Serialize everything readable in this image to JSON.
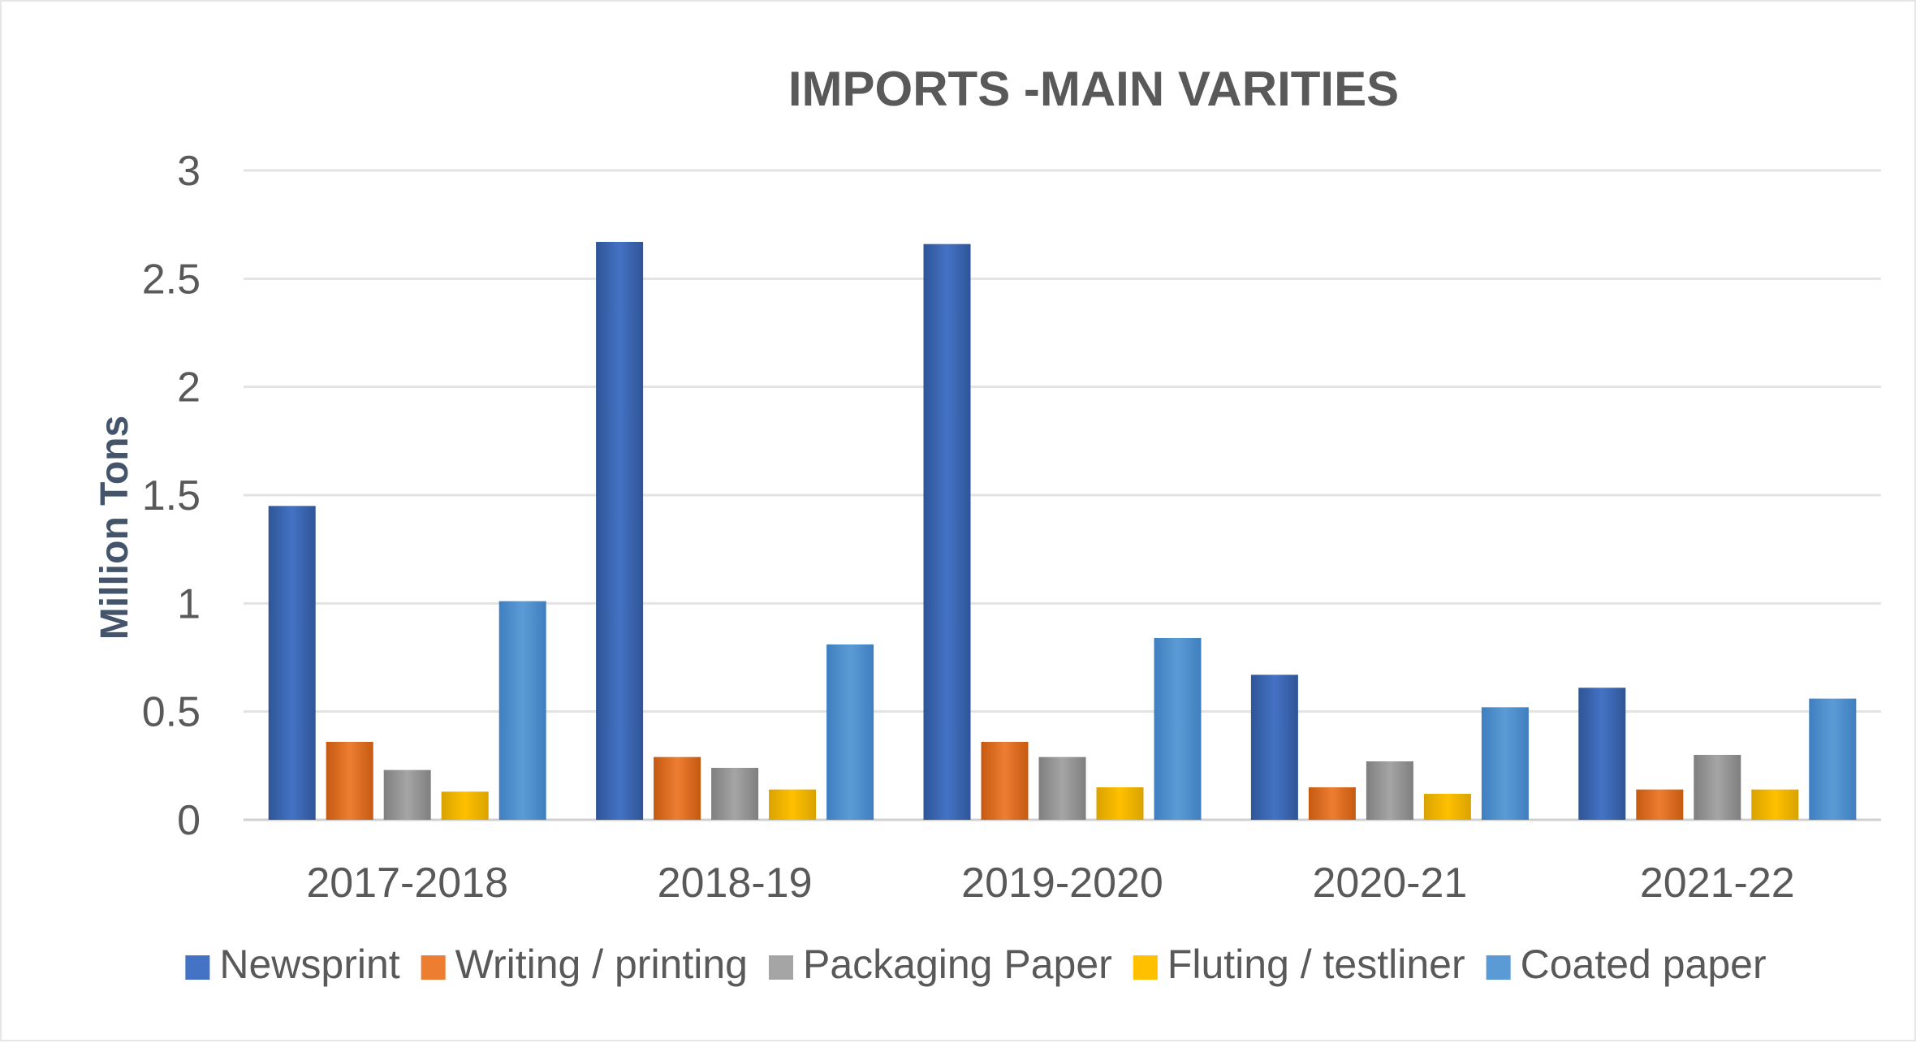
{
  "chart_data": {
    "type": "bar",
    "title": "IMPORTS -MAIN VARITIES",
    "xlabel": "",
    "ylabel": "Million Tons",
    "ylim": [
      0,
      3
    ],
    "yticks": [
      "0",
      "0.5",
      "1",
      "1.5",
      "2",
      "2.5",
      "3"
    ],
    "grid": true,
    "legend_position": "bottom",
    "categories": [
      "2017-2018",
      "2018-19",
      "2019-2020",
      "2020-21",
      "2021-22"
    ],
    "series": [
      {
        "name": "Newsprint",
        "color": "#4472c4",
        "values": [
          1.45,
          2.67,
          2.66,
          0.67,
          0.61
        ]
      },
      {
        "name": "Writing / printing",
        "color": "#ed7d31",
        "values": [
          0.36,
          0.29,
          0.36,
          0.15,
          0.14
        ]
      },
      {
        "name": "Packaging Paper",
        "color": "#a5a5a5",
        "values": [
          0.23,
          0.24,
          0.29,
          0.27,
          0.3
        ]
      },
      {
        "name": "Fluting / testliner",
        "color": "#ffc000",
        "values": [
          0.13,
          0.14,
          0.15,
          0.12,
          0.14
        ]
      },
      {
        "name": "Coated paper",
        "color": "#5b9bd5",
        "values": [
          1.01,
          0.81,
          0.84,
          0.52,
          0.56
        ]
      }
    ]
  }
}
